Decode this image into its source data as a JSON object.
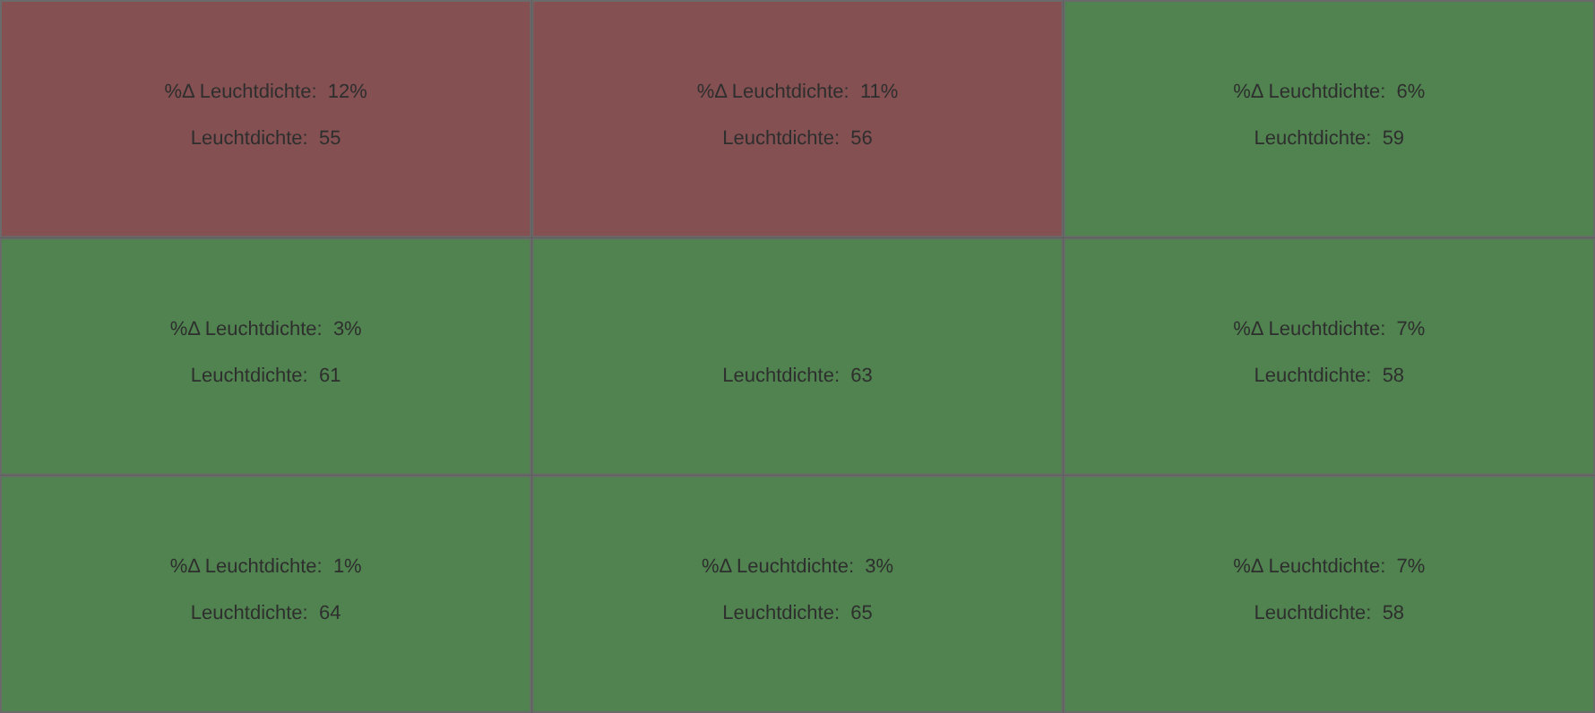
{
  "chart_data": {
    "type": "heatmap",
    "categories": [
      null,
      null,
      null
    ],
    "y_categories": [
      null,
      null,
      null
    ],
    "cells": [
      [
        55,
        56,
        59
      ],
      [
        61,
        63,
        58
      ],
      [
        64,
        65,
        58
      ]
    ],
    "cell_labels": [
      [
        "Leuchtdichte:  55",
        "Leuchtdichte:  56",
        "Leuchtdichte:  59"
      ],
      [
        "Leuchtdichte:  61",
        "Leuchtdichte:  63",
        "Leuchtdichte:  58"
      ],
      [
        "Leuchtdichte:  64",
        "Leuchtdichte:  65",
        "Leuchtdichte:  58"
      ]
    ],
    "annotations": [
      "%Δ Leuchtdichte:  12%",
      "%Δ Leuchtdichte:  11%",
      "%Δ Leuchtdichte:  6%",
      "%Δ Leuchtdichte:  3%",
      null,
      "%Δ Leuchtdichte:  7%",
      "%Δ Leuchtdichte:  1%",
      "%Δ Leuchtdichte:  3%",
      "%Δ Leuchtdichte:  7%"
    ],
    "colors": [
      [
        "#845052",
        "#845052",
        "#50834f"
      ],
      [
        "#50834f",
        "#50834f",
        "#50834f"
      ],
      [
        "#50834f",
        "#50834f",
        "#50834f"
      ]
    ]
  }
}
